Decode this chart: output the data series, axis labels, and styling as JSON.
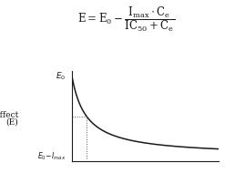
{
  "ylabel_line1": "Effect",
  "ylabel_line2": "(E)",
  "y_top_label": "E₀",
  "y_bottom_label": "E₀- Iₘₐₓ",
  "x_range": [
    0,
    10
  ],
  "E0": 1.0,
  "Imax": 0.85,
  "IC50": 1.0,
  "background_color": "#ffffff",
  "curve_color": "#1a1a1a",
  "dot_color": "#555555",
  "axis_color": "#1a1a1a",
  "text_color": "#1a1a1a",
  "font_size_formula": 8.5,
  "font_size_label": 6.5,
  "font_size_ylabel": 6.5
}
